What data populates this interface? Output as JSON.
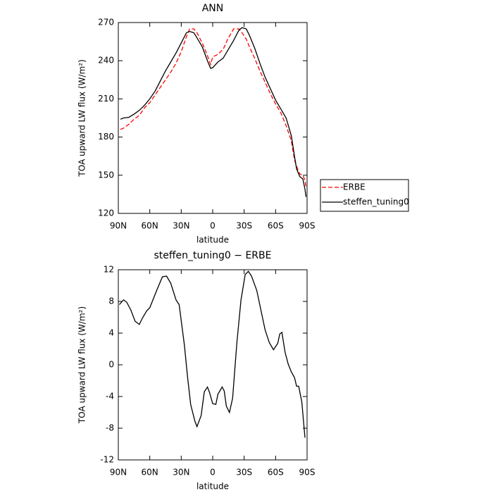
{
  "chart_data": [
    {
      "type": "line",
      "title": "ANN",
      "xlabel": "latitude",
      "ylabel": "TOA upward LW flux (W/m²)",
      "x": [
        88,
        85,
        80,
        75,
        70,
        65,
        60,
        55,
        50,
        45,
        40,
        35,
        30,
        25,
        22,
        18,
        15,
        10,
        5,
        2,
        0,
        -5,
        -10,
        -15,
        -20,
        -25,
        -28,
        -32,
        -35,
        -40,
        -45,
        -50,
        -55,
        -60,
        -65,
        -70,
        -75,
        -78,
        -80,
        -83,
        -86,
        -88,
        -89
      ],
      "series": [
        {
          "name": "ERBE",
          "color": "#ff0000",
          "dashed": true,
          "values": [
            186,
            187,
            190,
            194,
            197,
            203,
            207,
            213,
            219,
            225,
            231,
            238,
            247,
            259,
            265,
            265,
            262,
            254,
            244,
            237,
            243,
            245,
            249,
            258,
            265,
            265,
            262,
            257,
            251,
            242,
            232,
            223,
            214,
            206,
            199,
            189,
            177,
            162,
            157,
            151,
            150,
            146,
            141
          ]
        },
        {
          "name": "steffen_tuning0",
          "color": "#000000",
          "dashed": false,
          "values": [
            194,
            195,
            195.5,
            198,
            201,
            205,
            210,
            216,
            224,
            232,
            239,
            246,
            254,
            262,
            263,
            262,
            258,
            251,
            240,
            234,
            234.5,
            239,
            242,
            249,
            256,
            264,
            266,
            265,
            260,
            250,
            238,
            227,
            218,
            209,
            202,
            195,
            181,
            165,
            155,
            149,
            147,
            139,
            133
          ]
        }
      ],
      "xlim": [
        90,
        -90
      ],
      "xticks": [
        {
          "value": 90,
          "label": "90N"
        },
        {
          "value": 60,
          "label": "60N"
        },
        {
          "value": 30,
          "label": "30N"
        },
        0,
        {
          "value": -30,
          "label": "30S"
        },
        {
          "value": -60,
          "label": "60S"
        },
        {
          "value": -90,
          "label": "90S"
        }
      ],
      "ylim": [
        120,
        270
      ],
      "yticks": [
        120,
        150,
        180,
        210,
        240,
        270
      ],
      "legend": "right"
    },
    {
      "type": "line",
      "title": "steffen_tuning0 − ERBE",
      "xlabel": "latitude",
      "ylabel": "TOA upward LW flux (W/m²)",
      "x": [
        89,
        85,
        82,
        78,
        74,
        70,
        67,
        63,
        60,
        54,
        48,
        44,
        40,
        35,
        32,
        27,
        24,
        21,
        17,
        15,
        11,
        8,
        5,
        3,
        0,
        -3,
        -5,
        -9,
        -11,
        -13,
        -16,
        -19,
        -23,
        -27,
        -31,
        -34,
        -37,
        -42,
        -46,
        -50,
        -54,
        -58,
        -62,
        -64,
        -66,
        -69,
        -72,
        -75,
        -78,
        -80,
        -82,
        -85,
        -88
      ],
      "values": [
        7.6,
        8.2,
        7.9,
        6.9,
        5.5,
        5.1,
        5.9,
        6.8,
        7.2,
        9.2,
        11.1,
        11.2,
        10.3,
        8.2,
        7.6,
        2.5,
        -1.5,
        -5.0,
        -7.1,
        -7.8,
        -6.4,
        -3.4,
        -2.8,
        -3.5,
        -4.9,
        -5.0,
        -3.7,
        -2.8,
        -3.3,
        -5.2,
        -6.0,
        -4.2,
        2.7,
        8.2,
        11.4,
        11.8,
        11.2,
        9.4,
        6.9,
        4.4,
        2.8,
        1.9,
        2.7,
        3.9,
        4.1,
        1.6,
        0.1,
        -0.9,
        -1.6,
        -2.7,
        -2.7,
        -4.7,
        -9.2
      ],
      "color": "#000000",
      "xlim": [
        90,
        -90
      ],
      "xticks": [
        {
          "value": 90,
          "label": "90N"
        },
        {
          "value": 60,
          "label": "60N"
        },
        {
          "value": 30,
          "label": "30N"
        },
        0,
        {
          "value": -30,
          "label": "30S"
        },
        {
          "value": -60,
          "label": "60S"
        },
        {
          "value": -90,
          "label": "90S"
        }
      ],
      "ylim": [
        -12,
        12
      ],
      "yticks": [
        -12,
        -8,
        -4,
        0,
        4,
        8,
        12
      ]
    }
  ]
}
